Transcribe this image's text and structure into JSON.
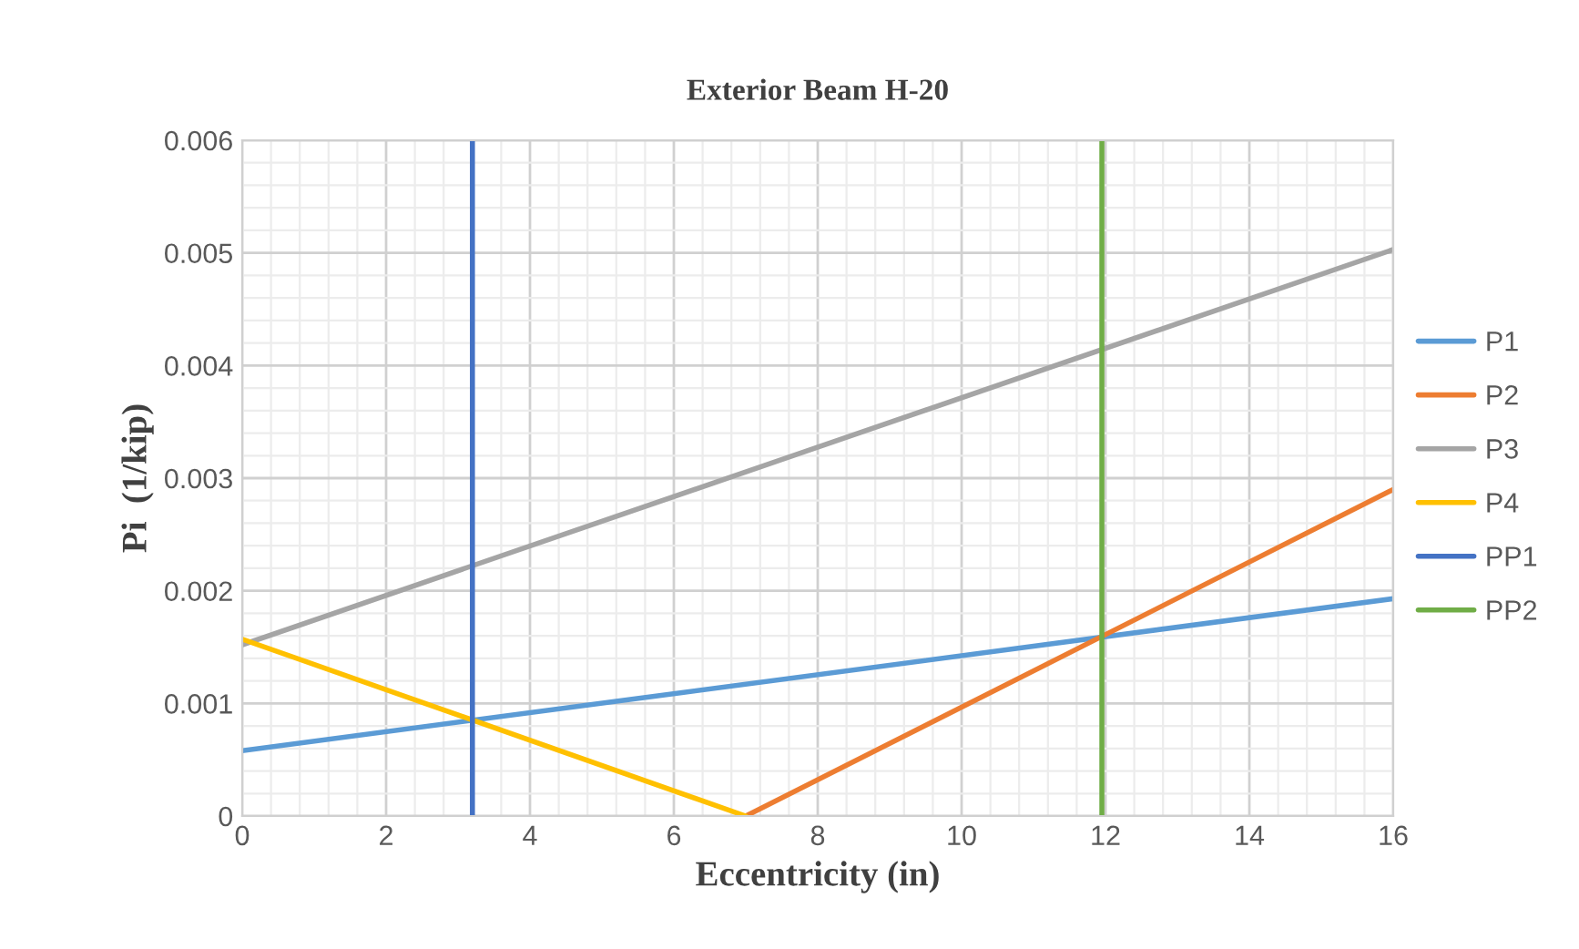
{
  "chart_data": {
    "type": "line",
    "title": "Exterior Beam H-20",
    "xlabel": "Eccentricity (in)",
    "ylabel": "Pi  (1/kip)",
    "series": [
      {
        "name": "P1",
        "color": "#5b9bd5",
        "x": [
          0,
          16
        ],
        "values": [
          0.00058,
          0.00193
        ]
      },
      {
        "name": "P2",
        "color": "#ed7d31",
        "x": [
          7,
          16
        ],
        "values": [
          0,
          0.0029
        ]
      },
      {
        "name": "P3",
        "color": "#a5a5a5",
        "x": [
          0,
          16
        ],
        "values": [
          0.00152,
          0.00503
        ]
      },
      {
        "name": "P4",
        "color": "#ffc000",
        "x": [
          0,
          7
        ],
        "values": [
          0.00157,
          0
        ]
      },
      {
        "name": "PP1",
        "color": "#4472c4",
        "x": [
          3.2,
          3.2
        ],
        "values": [
          0,
          0.006
        ]
      },
      {
        "name": "PP2",
        "color": "#70ad47",
        "x": [
          11.95,
          11.95
        ],
        "values": [
          0,
          0.006
        ]
      }
    ],
    "xlim": [
      0,
      16
    ],
    "xticks": [
      0,
      2,
      4,
      6,
      8,
      10,
      12,
      14,
      16
    ],
    "ylim": [
      0,
      0.006
    ],
    "yticks": [
      {
        "value": 0,
        "label": "0"
      },
      0.001,
      0.002,
      0.003,
      0.004,
      0.005,
      0.006
    ],
    "grid": true,
    "legend": "right",
    "marker": "none",
    "line_style": "solid"
  }
}
